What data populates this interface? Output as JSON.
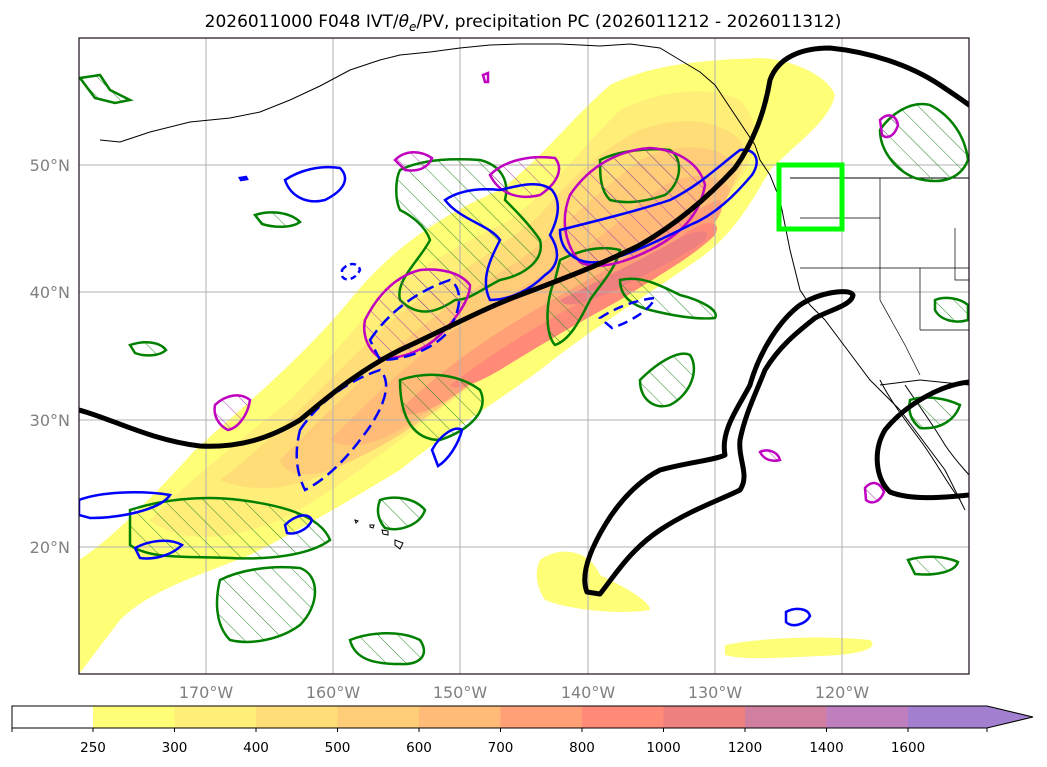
{
  "figure": {
    "title": "2026011000 F048 IVT/θe/PV, precipitation PC (2026011212 - 2026011312)",
    "title_pre": "2026011000 F048 IVT/",
    "title_theta": "θ",
    "title_sub": "e",
    "title_post": "/PV, precipitation PC (2026011212 - 2026011312)"
  },
  "map": {
    "lat_labels": [
      "20°N",
      "30°N",
      "40°N",
      "50°N"
    ],
    "lon_labels": [
      "170°W",
      "160°W",
      "150°W",
      "140°W",
      "130°W",
      "120°W"
    ],
    "highlight_box_color": "#00ff00",
    "highlight_box_label": "target precipitation box"
  },
  "chart_data": {
    "type": "map",
    "field": "IVT (kg m-1 s-1)",
    "colorbar": {
      "levels": [
        250,
        300,
        400,
        500,
        600,
        700,
        800,
        1000,
        1200,
        1400,
        1600
      ],
      "tick_labels": [
        "250",
        "300",
        "400",
        "500",
        "600",
        "700",
        "800",
        "1000",
        "1200",
        "1400",
        "1600"
      ],
      "colors": [
        "#ffff77",
        "#ffee77",
        "#ffdd77",
        "#ffcc77",
        "#ffbb77",
        "#ffa077",
        "#ff8a77",
        "#ee8080",
        "#d07fa0",
        "#bf7fbf",
        "#a37fcf"
      ],
      "extend": "max"
    },
    "contours": {
      "theta_e": {
        "color": "#000000",
        "style": "thick solid"
      },
      "pv_green": {
        "color": "#008000",
        "style": "hatched"
      },
      "pv_blue": {
        "color": "#0000ff",
        "style": "solid/dashed"
      },
      "pv_magenta": {
        "color": "#c000c0",
        "style": "hatched"
      }
    },
    "xlim_lon": [
      -180,
      -110
    ],
    "ylim_lat": [
      10,
      60
    ]
  }
}
